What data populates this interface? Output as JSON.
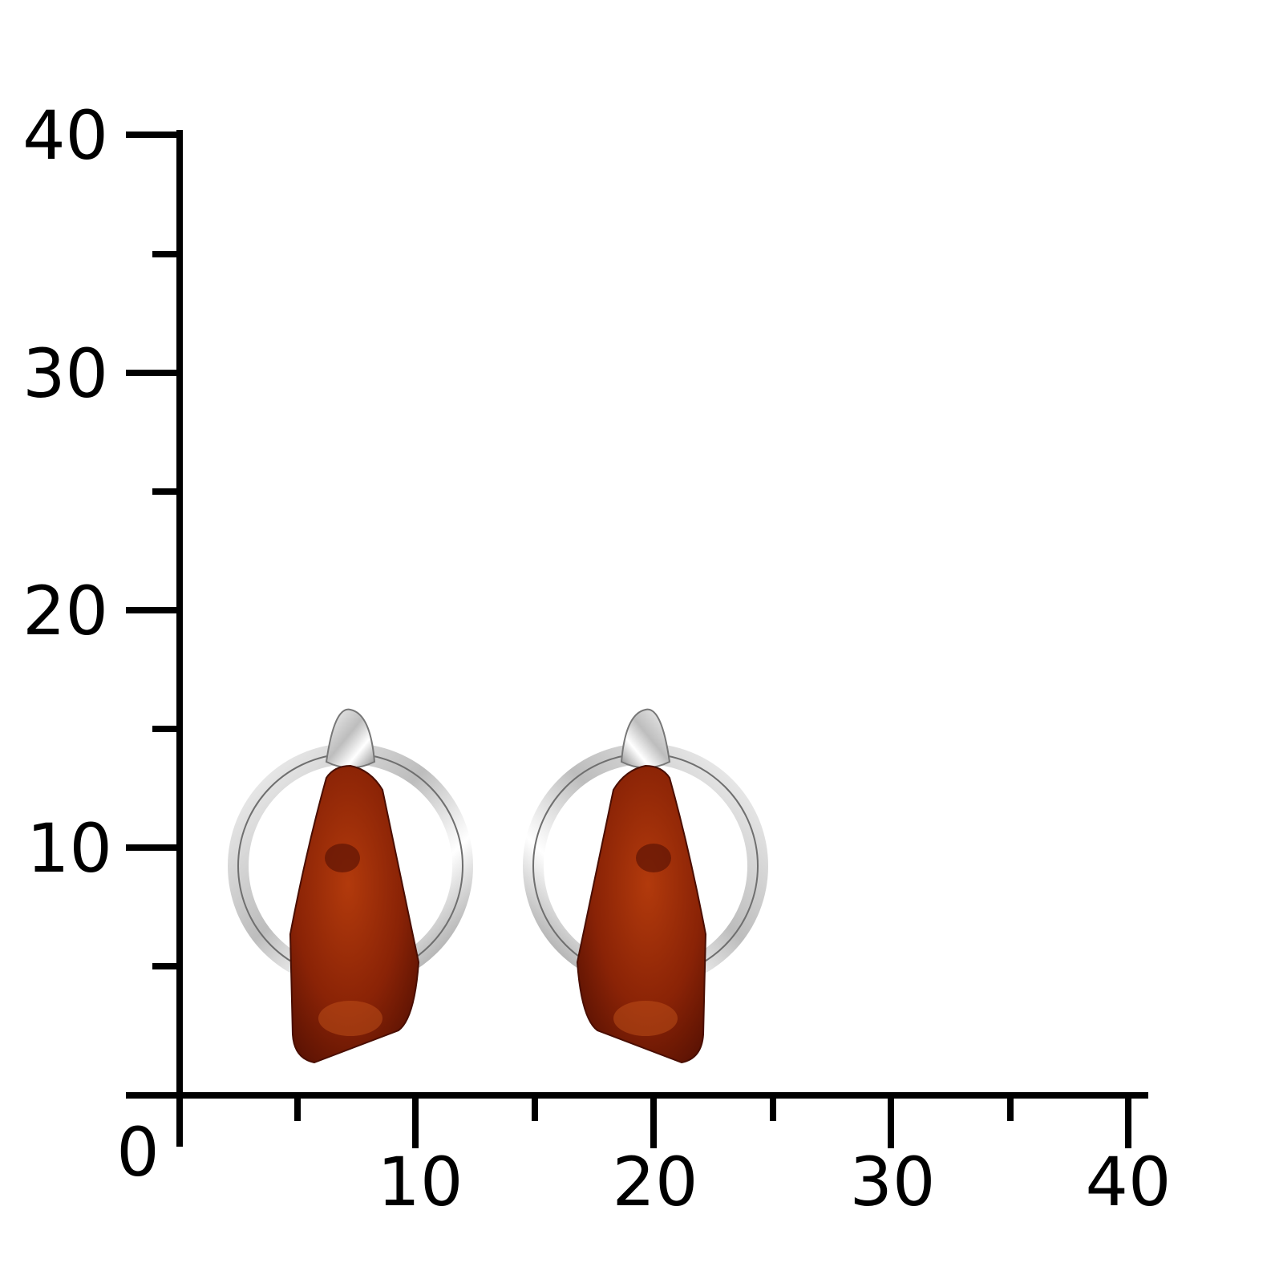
{
  "scale": {
    "y_ticks": [
      "40",
      "30",
      "20",
      "10"
    ],
    "origin": "0",
    "x_ticks": [
      "10",
      "20",
      "30",
      "40"
    ]
  }
}
